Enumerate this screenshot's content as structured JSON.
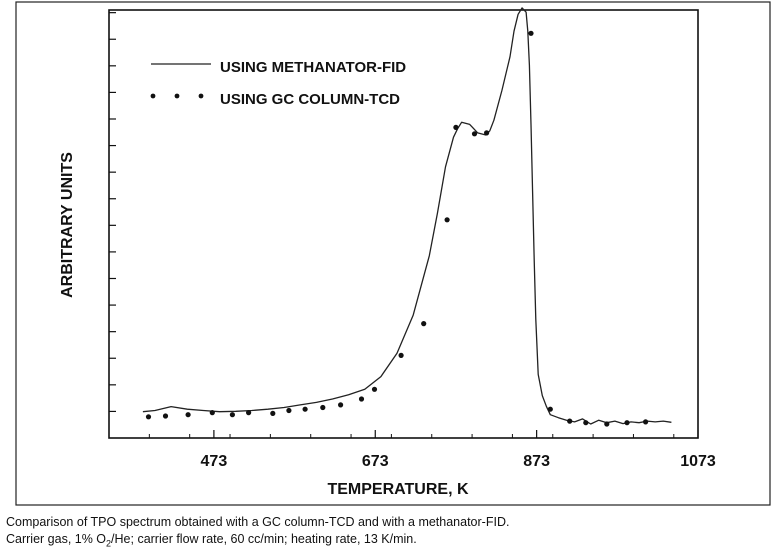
{
  "chart_data": {
    "type": "line",
    "title": "",
    "xlabel": "TEMPERATURE, K",
    "ylabel": "ARBITRARY UNITS",
    "xlim": [
      343,
      1073
    ],
    "ylim": [
      0,
      10
    ],
    "xticks": [
      473,
      673,
      873,
      1073
    ],
    "xtick_labels": [
      "473",
      "673",
      "873",
      "1073"
    ],
    "y_tick_count": 16,
    "y_tick_labels_shown": false,
    "grid": false,
    "legend_position": "top-left",
    "series": [
      {
        "name": "USING METHANATOR-FID",
        "style": "line",
        "color": "#222222",
        "x": [
          385,
          400,
          420,
          440,
          460,
          480,
          500,
          520,
          540,
          560,
          580,
          600,
          620,
          640,
          660,
          680,
          700,
          720,
          740,
          750,
          760,
          770,
          775,
          780,
          790,
          800,
          810,
          815,
          820,
          830,
          840,
          845,
          850,
          855,
          860,
          862,
          864,
          866,
          868,
          870,
          872,
          875,
          880,
          885,
          890,
          900,
          910,
          920,
          930,
          940,
          950,
          960,
          970,
          980,
          990,
          1000,
          1010,
          1020,
          1030,
          1040
        ],
        "y": [
          0.62,
          0.65,
          0.74,
          0.68,
          0.65,
          0.62,
          0.63,
          0.65,
          0.68,
          0.72,
          0.78,
          0.84,
          0.92,
          1.02,
          1.15,
          1.45,
          2.0,
          2.9,
          4.3,
          5.3,
          6.4,
          7.1,
          7.3,
          7.45,
          7.4,
          7.2,
          7.15,
          7.25,
          7.5,
          8.2,
          9.0,
          9.6,
          10.0,
          10.15,
          10.05,
          9.6,
          8.8,
          7.4,
          5.8,
          4.2,
          2.8,
          1.5,
          1.0,
          0.75,
          0.55,
          0.48,
          0.42,
          0.38,
          0.45,
          0.33,
          0.42,
          0.36,
          0.4,
          0.34,
          0.38,
          0.36,
          0.4,
          0.38,
          0.4,
          0.37
        ]
      },
      {
        "name": "USING GC COLUMN-TCD",
        "style": "points",
        "color": "#111111",
        "x": [
          392,
          413,
          441,
          471,
          496,
          516,
          546,
          566,
          586,
          608,
          630,
          656,
          672,
          705,
          733,
          762,
          773,
          796,
          811,
          866,
          890,
          914,
          934,
          960,
          985,
          1008
        ],
        "y": [
          0.5,
          0.52,
          0.55,
          0.6,
          0.55,
          0.6,
          0.58,
          0.65,
          0.68,
          0.72,
          0.78,
          0.92,
          1.15,
          1.95,
          2.7,
          5.15,
          7.33,
          7.18,
          7.2,
          9.55,
          0.68,
          0.4,
          0.36,
          0.33,
          0.36,
          0.38
        ]
      }
    ]
  },
  "caption": {
    "line1": "Comparison of TPO spectrum obtained with a GC column-TCD and with a methanator-FID.",
    "line2_a": "Carrier gas, 1% O",
    "line2_sub": "2",
    "line2_b": "/He; carrier flow rate, 60 cc/min; heating rate, 13 K/min."
  }
}
